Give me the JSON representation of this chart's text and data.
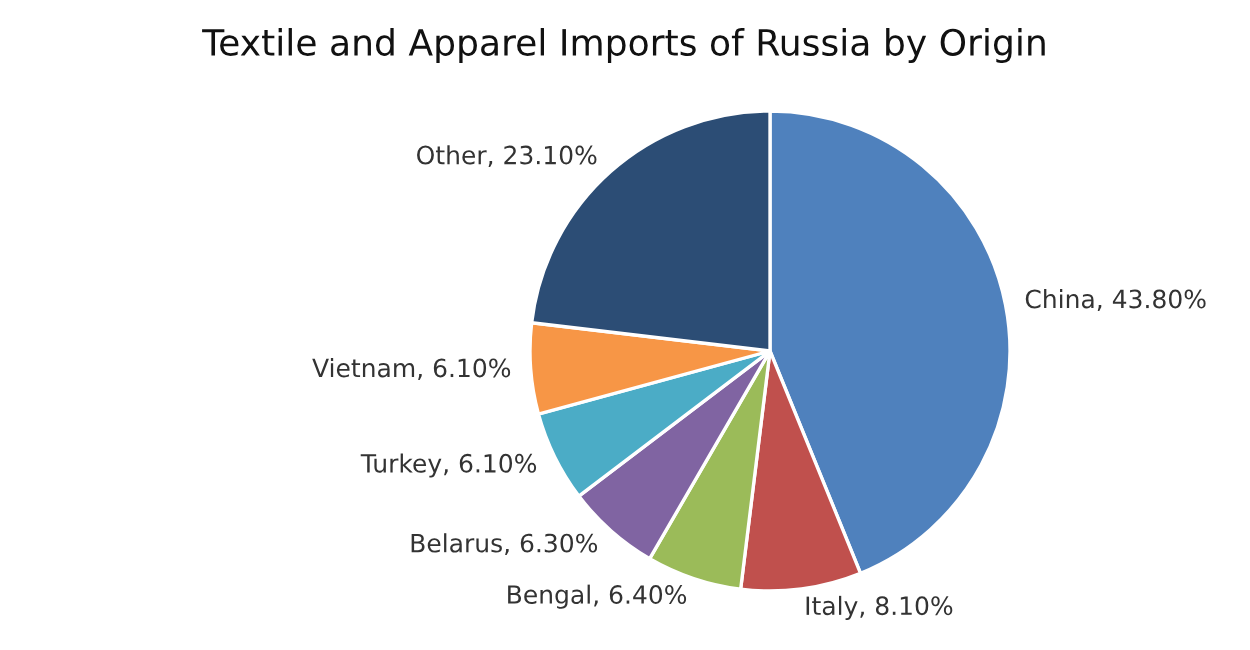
{
  "chart_data": {
    "type": "pie",
    "title": "Textile and Apparel Imports of Russia by Origin",
    "categories": [
      "China",
      "Italy",
      "Bengal",
      "Belarus",
      "Turkey",
      "Vietnam",
      "Other"
    ],
    "values": [
      43.8,
      8.1,
      6.4,
      6.3,
      6.1,
      6.1,
      23.1
    ],
    "value_labels": [
      "43.80%",
      "8.10%",
      "6.40%",
      "6.30%",
      "6.10%",
      "6.10%",
      "23.10%"
    ],
    "colors": [
      "#4f81bd",
      "#c0504d",
      "#9bbb59",
      "#8064a2",
      "#4bacc6",
      "#f79646",
      "#2c4d75"
    ],
    "legend": false
  }
}
